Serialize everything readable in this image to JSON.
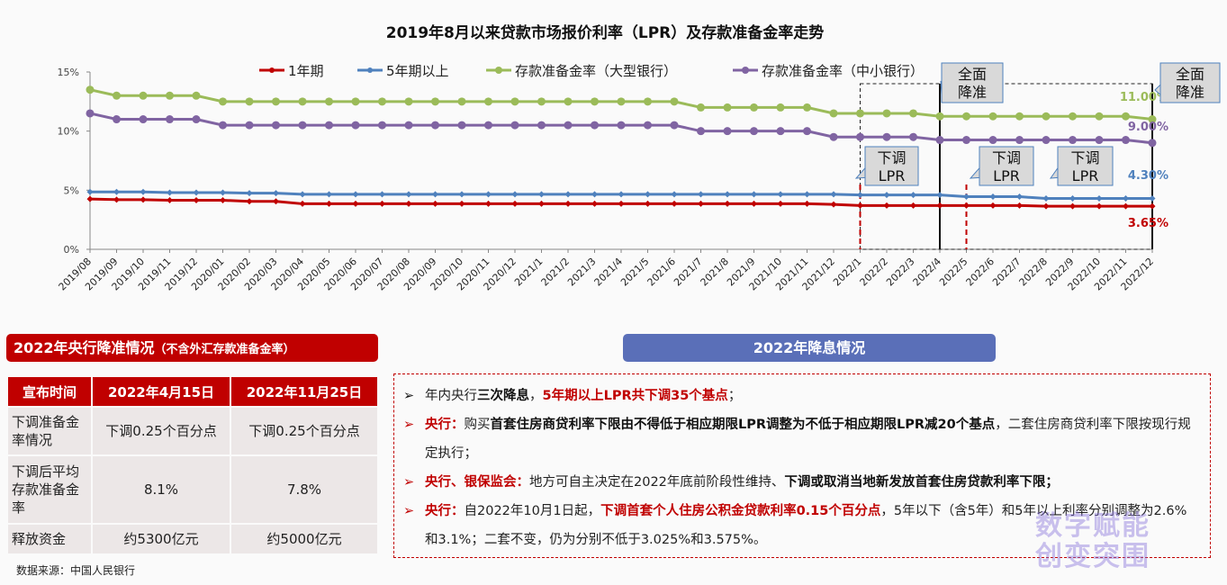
{
  "chart_data": {
    "type": "line",
    "title": "2019年8月以来贷款市场报价利率（LPR）及存款准备金率走势",
    "xlabel": "",
    "ylabel": "",
    "ylim": [
      0,
      15
    ],
    "yticks": [
      "0%",
      "5%",
      "10%",
      "15%"
    ],
    "grid": false,
    "legend": "top",
    "categories": [
      "2019/08",
      "2019/09",
      "2019/10",
      "2019/11",
      "2019/12",
      "2020/01",
      "2020/02",
      "2020/03",
      "2020/04",
      "2020/05",
      "2020/06",
      "2020/07",
      "2020/08",
      "2020/09",
      "2020/10",
      "2020/11",
      "2020/12",
      "2021/1",
      "2021/2",
      "2021/3",
      "2021/4",
      "2021/5",
      "2021/6",
      "2021/7",
      "2021/8",
      "2021/9",
      "2021/10",
      "2021/11",
      "2021/12",
      "2022/1",
      "2022/2",
      "2022/3",
      "2022/4",
      "2022/5",
      "2022/6",
      "2022/7",
      "2022/8",
      "2022/9",
      "2022/10",
      "2022/11",
      "2022/12"
    ],
    "series": [
      {
        "name": "1年期",
        "color": "#c00000",
        "marker": "diamond",
        "end_label": "3.65%",
        "values": [
          4.25,
          4.2,
          4.2,
          4.15,
          4.15,
          4.15,
          4.05,
          4.05,
          3.85,
          3.85,
          3.85,
          3.85,
          3.85,
          3.85,
          3.85,
          3.85,
          3.85,
          3.85,
          3.85,
          3.85,
          3.85,
          3.85,
          3.85,
          3.85,
          3.85,
          3.85,
          3.85,
          3.85,
          3.8,
          3.7,
          3.7,
          3.7,
          3.7,
          3.7,
          3.7,
          3.7,
          3.65,
          3.65,
          3.65,
          3.65,
          3.65
        ]
      },
      {
        "name": "5年期以上",
        "color": "#4f81bd",
        "marker": "diamond",
        "end_label": "4.30%",
        "values": [
          4.85,
          4.85,
          4.85,
          4.8,
          4.8,
          4.8,
          4.75,
          4.75,
          4.65,
          4.65,
          4.65,
          4.65,
          4.65,
          4.65,
          4.65,
          4.65,
          4.65,
          4.65,
          4.65,
          4.65,
          4.65,
          4.65,
          4.65,
          4.65,
          4.65,
          4.65,
          4.65,
          4.65,
          4.65,
          4.6,
          4.6,
          4.6,
          4.6,
          4.45,
          4.45,
          4.45,
          4.3,
          4.3,
          4.3,
          4.3,
          4.3
        ]
      },
      {
        "name": "存款准备金率（大型银行）",
        "color": "#9bbb59",
        "marker": "circle",
        "end_label": "11.00%",
        "values": [
          13.5,
          13.0,
          13.0,
          13.0,
          13.0,
          12.5,
          12.5,
          12.5,
          12.5,
          12.5,
          12.5,
          12.5,
          12.5,
          12.5,
          12.5,
          12.5,
          12.5,
          12.5,
          12.5,
          12.5,
          12.5,
          12.5,
          12.5,
          12.0,
          12.0,
          12.0,
          12.0,
          12.0,
          11.5,
          11.5,
          11.5,
          11.5,
          11.25,
          11.25,
          11.25,
          11.25,
          11.25,
          11.25,
          11.25,
          11.25,
          11.0
        ]
      },
      {
        "name": "存款准备金率（中小银行）",
        "color": "#8064a2",
        "marker": "circle",
        "end_label": "9.00%",
        "values": [
          11.5,
          11.0,
          11.0,
          11.0,
          11.0,
          10.5,
          10.5,
          10.5,
          10.5,
          10.5,
          10.5,
          10.5,
          10.5,
          10.5,
          10.5,
          10.5,
          10.5,
          10.5,
          10.5,
          10.5,
          10.5,
          10.5,
          10.5,
          10.0,
          10.0,
          10.0,
          10.0,
          10.0,
          9.5,
          9.5,
          9.5,
          9.5,
          9.25,
          9.25,
          9.25,
          9.25,
          9.25,
          9.25,
          9.25,
          9.25,
          9.0
        ]
      }
    ],
    "annotations": [
      {
        "text": [
          "全面",
          "降准"
        ],
        "at": "2022/4",
        "line": "solid-black"
      },
      {
        "text": [
          "全面",
          "降准"
        ],
        "at": "2022/12",
        "line": "solid-black"
      },
      {
        "text": [
          "下调",
          "LPR"
        ],
        "at": "2022/1",
        "line": "dashed-red"
      },
      {
        "text": [
          "下调",
          "LPR"
        ],
        "at": "2022/5",
        "line": "dashed-red"
      },
      {
        "text": [
          "下调",
          "LPR"
        ],
        "at": "2022/8",
        "line": "none"
      }
    ]
  },
  "rrr_section": {
    "title": "2022年央行降准情况",
    "title_note": "（不含外汇存款准备金率）",
    "headers": [
      "宣布时间",
      "2022年4月15日",
      "2022年11月25日"
    ],
    "rows": [
      [
        "下调准备金率情况",
        "下调0.25个百分点",
        "下调0.25个百分点"
      ],
      [
        "下调后平均存款准备金率",
        "8.1%",
        "7.8%"
      ],
      [
        "释放资金",
        "约5300亿元",
        "约5000亿元"
      ]
    ],
    "source": "数据来源：中国人民银行"
  },
  "rate_cut_section": {
    "title": "2022年降息情况",
    "bullets": [
      {
        "marker": "➢",
        "marker_color": "#111",
        "segments": [
          [
            "n",
            "年内央行"
          ],
          [
            "b",
            "三次降息"
          ],
          [
            "n",
            "，"
          ],
          [
            "r",
            "5年期以上LPR共下调35个基点"
          ],
          [
            "n",
            "；"
          ]
        ]
      },
      {
        "marker": "➢",
        "marker_color": "#c00000",
        "segments": [
          [
            "r",
            "央行："
          ],
          [
            "n",
            "购买"
          ],
          [
            "b",
            "首套住房商贷利率下限由不得低于相应期限LPR调整为不低于相应期限LPR减20个基点"
          ],
          [
            "n",
            "，二套住房商贷利率下限按现行规定执行；"
          ]
        ]
      },
      {
        "marker": "➢",
        "marker_color": "#c00000",
        "segments": [
          [
            "r",
            "央行、银保监会："
          ],
          [
            "n",
            "地方可自主决定在2022年底前阶段性维持、"
          ],
          [
            "b",
            "下调或取消当地新发放首套住房贷款利率下限；"
          ]
        ]
      },
      {
        "marker": "➢",
        "marker_color": "#c00000",
        "segments": [
          [
            "r",
            "央行："
          ],
          [
            "n",
            "自2022年10月1日起，"
          ],
          [
            "r",
            "下调首套个人住房公积金贷款利率0.15个百分点"
          ],
          [
            "n",
            "，5年以下（含5年）和5年以上利率分别调整为2.6%和3.1%；二套不变，仍为分别不低于3.025%和3.575%。"
          ]
        ]
      }
    ]
  },
  "watermark": {
    "line1": "数字赋能",
    "line2": "创变突围"
  }
}
